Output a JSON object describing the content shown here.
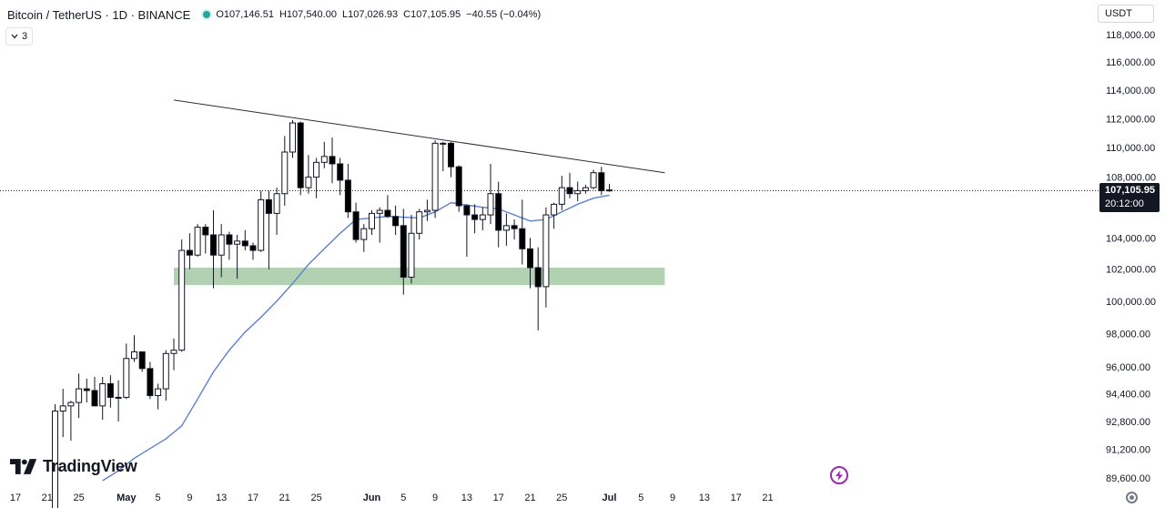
{
  "header": {
    "symbol_title": "Bitcoin / TetherUS · 1D · BINANCE",
    "ohlc": [
      {
        "key": "O",
        "value": "107,146.51"
      },
      {
        "key": "H",
        "value": "107,540.00"
      },
      {
        "key": "L",
        "value": "107,026.93"
      },
      {
        "key": "C",
        "value": "107,105.95"
      }
    ],
    "change": "−40.55 (−0.04%)",
    "collapse_count": "3",
    "currency": "USDT"
  },
  "price_tag": {
    "price": "107,105.95",
    "countdown": "20:12:00"
  },
  "logo_text": "TradingView",
  "colors": {
    "up_body": "#ffffff",
    "down_body": "#000000",
    "wick": "#131722",
    "ma_line": "#5b7fcf",
    "trendline": "#2a2e39",
    "support_zone": "#a5c9a6"
  },
  "icons": [
    "chevron-down-icon",
    "tradingview-logo-icon",
    "bolt-icon",
    "settings-icon"
  ],
  "chart_data": {
    "type": "candlestick",
    "symbol": "BTCUSDT",
    "interval": "1D",
    "y_axis": {
      "tick_labels": [
        "118,000.00",
        "116,000.00",
        "114,000.00",
        "112,000.00",
        "110,000.00",
        "108,000.00",
        "104,000.00",
        "102,000.00",
        "100,000.00",
        "98,000.00",
        "96,000.00",
        "94,400.00",
        "92,800.00",
        "91,200.00",
        "89,600.00"
      ],
      "tick_values": [
        118000,
        116000,
        114000,
        112000,
        110000,
        108000,
        104000,
        102000,
        100000,
        98000,
        96000,
        94400,
        92800,
        91200,
        89600
      ],
      "scale": "log",
      "range": [
        89300,
        119000
      ]
    },
    "x_axis": {
      "tick_labels": [
        "17",
        "21",
        "25",
        "May",
        "5",
        "9",
        "13",
        "17",
        "21",
        "25",
        "Jun",
        "5",
        "9",
        "13",
        "17",
        "21",
        "25",
        "Jul",
        "5",
        "9",
        "13",
        "17",
        "21"
      ],
      "tick_dates": [
        "2025-04-17",
        "2025-04-21",
        "2025-04-25",
        "2025-05-01",
        "2025-05-05",
        "2025-05-09",
        "2025-05-13",
        "2025-05-17",
        "2025-05-21",
        "2025-05-25",
        "2025-06-01",
        "2025-06-05",
        "2025-06-09",
        "2025-06-13",
        "2025-06-17",
        "2025-06-21",
        "2025-06-25",
        "2025-07-01",
        "2025-07-05",
        "2025-07-09",
        "2025-07-13",
        "2025-07-17",
        "2025-07-21"
      ]
    },
    "candles": [
      {
        "date": "2025-04-22",
        "o": 87500,
        "h": 93800,
        "l": 87000,
        "c": 93400
      },
      {
        "date": "2025-04-23",
        "o": 93400,
        "h": 94700,
        "l": 91900,
        "c": 93700
      },
      {
        "date": "2025-04-24",
        "o": 93700,
        "h": 94000,
        "l": 91700,
        "c": 93900
      },
      {
        "date": "2025-04-25",
        "o": 93900,
        "h": 95600,
        "l": 93000,
        "c": 94700
      },
      {
        "date": "2025-04-26",
        "o": 94700,
        "h": 95300,
        "l": 93900,
        "c": 94600
      },
      {
        "date": "2025-04-27",
        "o": 94600,
        "h": 95400,
        "l": 93700,
        "c": 93700
      },
      {
        "date": "2025-04-28",
        "o": 93700,
        "h": 95400,
        "l": 92900,
        "c": 95000
      },
      {
        "date": "2025-04-29",
        "o": 95000,
        "h": 95500,
        "l": 93600,
        "c": 94200
      },
      {
        "date": "2025-04-30",
        "o": 94200,
        "h": 95200,
        "l": 92800,
        "c": 94200
      },
      {
        "date": "2025-05-01",
        "o": 94200,
        "h": 97400,
        "l": 94100,
        "c": 96500
      },
      {
        "date": "2025-05-02",
        "o": 96500,
        "h": 97900,
        "l": 96300,
        "c": 96900
      },
      {
        "date": "2025-05-03",
        "o": 96900,
        "h": 96900,
        "l": 95700,
        "c": 95900
      },
      {
        "date": "2025-05-04",
        "o": 95900,
        "h": 96300,
        "l": 94100,
        "c": 94300
      },
      {
        "date": "2025-05-05",
        "o": 94300,
        "h": 95000,
        "l": 93500,
        "c": 94700
      },
      {
        "date": "2025-05-06",
        "o": 94700,
        "h": 97000,
        "l": 94000,
        "c": 96800
      },
      {
        "date": "2025-05-07",
        "o": 96800,
        "h": 97700,
        "l": 95800,
        "c": 97000
      },
      {
        "date": "2025-05-08",
        "o": 97000,
        "h": 103900,
        "l": 96900,
        "c": 103200
      },
      {
        "date": "2025-05-09",
        "o": 103200,
        "h": 104300,
        "l": 102000,
        "c": 102900
      },
      {
        "date": "2025-05-10",
        "o": 102900,
        "h": 104900,
        "l": 102800,
        "c": 104700
      },
      {
        "date": "2025-05-11",
        "o": 104700,
        "h": 104900,
        "l": 103000,
        "c": 104200
      },
      {
        "date": "2025-05-12",
        "o": 104200,
        "h": 105800,
        "l": 100800,
        "c": 102900
      },
      {
        "date": "2025-05-13",
        "o": 102900,
        "h": 104900,
        "l": 101500,
        "c": 104200
      },
      {
        "date": "2025-05-14",
        "o": 104200,
        "h": 104400,
        "l": 102600,
        "c": 103600
      },
      {
        "date": "2025-05-15",
        "o": 103600,
        "h": 104200,
        "l": 101400,
        "c": 103800
      },
      {
        "date": "2025-05-16",
        "o": 103800,
        "h": 104500,
        "l": 103200,
        "c": 103500
      },
      {
        "date": "2025-05-17",
        "o": 103500,
        "h": 103700,
        "l": 102600,
        "c": 103200
      },
      {
        "date": "2025-05-18",
        "o": 103200,
        "h": 107100,
        "l": 103100,
        "c": 106500
      },
      {
        "date": "2025-05-19",
        "o": 106500,
        "h": 107100,
        "l": 102000,
        "c": 105600
      },
      {
        "date": "2025-05-20",
        "o": 105600,
        "h": 107300,
        "l": 104200,
        "c": 106900
      },
      {
        "date": "2025-05-21",
        "o": 106900,
        "h": 110800,
        "l": 106100,
        "c": 109700
      },
      {
        "date": "2025-05-22",
        "o": 109700,
        "h": 111900,
        "l": 109300,
        "c": 111700
      },
      {
        "date": "2025-05-23",
        "o": 111700,
        "h": 111800,
        "l": 106800,
        "c": 107300
      },
      {
        "date": "2025-05-24",
        "o": 107300,
        "h": 109500,
        "l": 106900,
        "c": 108000
      },
      {
        "date": "2025-05-25",
        "o": 108000,
        "h": 109300,
        "l": 106600,
        "c": 109000
      },
      {
        "date": "2025-05-26",
        "o": 109000,
        "h": 110400,
        "l": 108600,
        "c": 109400
      },
      {
        "date": "2025-05-27",
        "o": 109400,
        "h": 110700,
        "l": 107600,
        "c": 108900
      },
      {
        "date": "2025-05-28",
        "o": 108900,
        "h": 109300,
        "l": 106800,
        "c": 107800
      },
      {
        "date": "2025-05-29",
        "o": 107800,
        "h": 108900,
        "l": 105300,
        "c": 105700
      },
      {
        "date": "2025-05-30",
        "o": 105700,
        "h": 106300,
        "l": 103700,
        "c": 103900
      },
      {
        "date": "2025-05-31",
        "o": 103900,
        "h": 104900,
        "l": 103100,
        "c": 104600
      },
      {
        "date": "2025-06-01",
        "o": 104600,
        "h": 105800,
        "l": 104200,
        "c": 105600
      },
      {
        "date": "2025-06-02",
        "o": 105600,
        "h": 106000,
        "l": 103700,
        "c": 105800
      },
      {
        "date": "2025-06-03",
        "o": 105800,
        "h": 106800,
        "l": 105300,
        "c": 105400
      },
      {
        "date": "2025-06-04",
        "o": 105400,
        "h": 106100,
        "l": 104200,
        "c": 104800
      },
      {
        "date": "2025-06-05",
        "o": 104800,
        "h": 105900,
        "l": 100400,
        "c": 101500
      },
      {
        "date": "2025-06-06",
        "o": 101500,
        "h": 105500,
        "l": 101100,
        "c": 104300
      },
      {
        "date": "2025-06-07",
        "o": 104300,
        "h": 105900,
        "l": 103900,
        "c": 105700
      },
      {
        "date": "2025-06-08",
        "o": 105700,
        "h": 106500,
        "l": 105100,
        "c": 105800
      },
      {
        "date": "2025-06-09",
        "o": 105800,
        "h": 110500,
        "l": 105300,
        "c": 110300
      },
      {
        "date": "2025-06-10",
        "o": 110300,
        "h": 110400,
        "l": 108400,
        "c": 110300
      },
      {
        "date": "2025-06-11",
        "o": 110300,
        "h": 110400,
        "l": 108000,
        "c": 108700
      },
      {
        "date": "2025-06-12",
        "o": 108700,
        "h": 108800,
        "l": 105700,
        "c": 106100
      },
      {
        "date": "2025-06-13",
        "o": 106100,
        "h": 106200,
        "l": 102800,
        "c": 105500
      },
      {
        "date": "2025-06-14",
        "o": 105500,
        "h": 106200,
        "l": 104300,
        "c": 105200
      },
      {
        "date": "2025-06-15",
        "o": 105200,
        "h": 106000,
        "l": 104500,
        "c": 105500
      },
      {
        "date": "2025-06-16",
        "o": 105500,
        "h": 108900,
        "l": 104900,
        "c": 106900
      },
      {
        "date": "2025-06-17",
        "o": 106900,
        "h": 107700,
        "l": 103400,
        "c": 104500
      },
      {
        "date": "2025-06-18",
        "o": 104500,
        "h": 105600,
        "l": 103500,
        "c": 104800
      },
      {
        "date": "2025-06-19",
        "o": 104800,
        "h": 105200,
        "l": 103900,
        "c": 104600
      },
      {
        "date": "2025-06-20",
        "o": 104600,
        "h": 106500,
        "l": 102300,
        "c": 103300
      },
      {
        "date": "2025-06-21",
        "o": 103300,
        "h": 104000,
        "l": 100800,
        "c": 102100
      },
      {
        "date": "2025-06-22",
        "o": 102100,
        "h": 103400,
        "l": 98200,
        "c": 100900
      },
      {
        "date": "2025-06-23",
        "o": 100900,
        "h": 106000,
        "l": 99600,
        "c": 105500
      },
      {
        "date": "2025-06-24",
        "o": 105500,
        "h": 106300,
        "l": 104600,
        "c": 106200
      },
      {
        "date": "2025-06-25",
        "o": 106200,
        "h": 108100,
        "l": 105800,
        "c": 107300
      },
      {
        "date": "2025-06-26",
        "o": 107300,
        "h": 108300,
        "l": 106600,
        "c": 106900
      },
      {
        "date": "2025-06-27",
        "o": 106900,
        "h": 107700,
        "l": 106400,
        "c": 107100
      },
      {
        "date": "2025-06-28",
        "o": 107100,
        "h": 107500,
        "l": 106900,
        "c": 107300
      },
      {
        "date": "2025-06-29",
        "o": 107300,
        "h": 108500,
        "l": 107200,
        "c": 108300
      },
      {
        "date": "2025-06-30",
        "o": 108300,
        "h": 108700,
        "l": 106800,
        "c": 107100
      },
      {
        "date": "2025-07-01",
        "o": 107146.51,
        "h": 107540,
        "l": 107026.93,
        "c": 107105.95
      }
    ],
    "moving_average": [
      {
        "date": "2025-04-28",
        "value": 89450
      },
      {
        "date": "2025-04-30",
        "value": 90000
      },
      {
        "date": "2025-05-02",
        "value": 90700
      },
      {
        "date": "2025-05-04",
        "value": 91250
      },
      {
        "date": "2025-05-06",
        "value": 91800
      },
      {
        "date": "2025-05-08",
        "value": 92550
      },
      {
        "date": "2025-05-10",
        "value": 94100
      },
      {
        "date": "2025-05-12",
        "value": 95700
      },
      {
        "date": "2025-05-14",
        "value": 97000
      },
      {
        "date": "2025-05-16",
        "value": 98100
      },
      {
        "date": "2025-05-18",
        "value": 99000
      },
      {
        "date": "2025-05-20",
        "value": 100000
      },
      {
        "date": "2025-05-22",
        "value": 101100
      },
      {
        "date": "2025-05-24",
        "value": 102300
      },
      {
        "date": "2025-05-26",
        "value": 103300
      },
      {
        "date": "2025-05-28",
        "value": 104300
      },
      {
        "date": "2025-05-30",
        "value": 105200
      },
      {
        "date": "2025-06-01",
        "value": 105300
      },
      {
        "date": "2025-06-03",
        "value": 105400
      },
      {
        "date": "2025-06-05",
        "value": 105350
      },
      {
        "date": "2025-06-07",
        "value": 105300
      },
      {
        "date": "2025-06-09",
        "value": 105700
      },
      {
        "date": "2025-06-11",
        "value": 106300
      },
      {
        "date": "2025-06-13",
        "value": 106150
      },
      {
        "date": "2025-06-15",
        "value": 106000
      },
      {
        "date": "2025-06-17",
        "value": 105900
      },
      {
        "date": "2025-06-19",
        "value": 105500
      },
      {
        "date": "2025-06-21",
        "value": 105100
      },
      {
        "date": "2025-06-23",
        "value": 105200
      },
      {
        "date": "2025-06-25",
        "value": 105700
      },
      {
        "date": "2025-06-27",
        "value": 106200
      },
      {
        "date": "2025-06-29",
        "value": 106600
      },
      {
        "date": "2025-07-01",
        "value": 106800
      }
    ],
    "trendline": {
      "start": {
        "date": "2025-05-07",
        "value": 113300
      },
      "end": {
        "date": "2025-07-08",
        "value": 108300
      }
    },
    "support_zone": {
      "start_date": "2025-05-07",
      "end_date": "2025-07-08",
      "low": 101000,
      "high": 102100
    },
    "last_price_line": 107105.95
  }
}
